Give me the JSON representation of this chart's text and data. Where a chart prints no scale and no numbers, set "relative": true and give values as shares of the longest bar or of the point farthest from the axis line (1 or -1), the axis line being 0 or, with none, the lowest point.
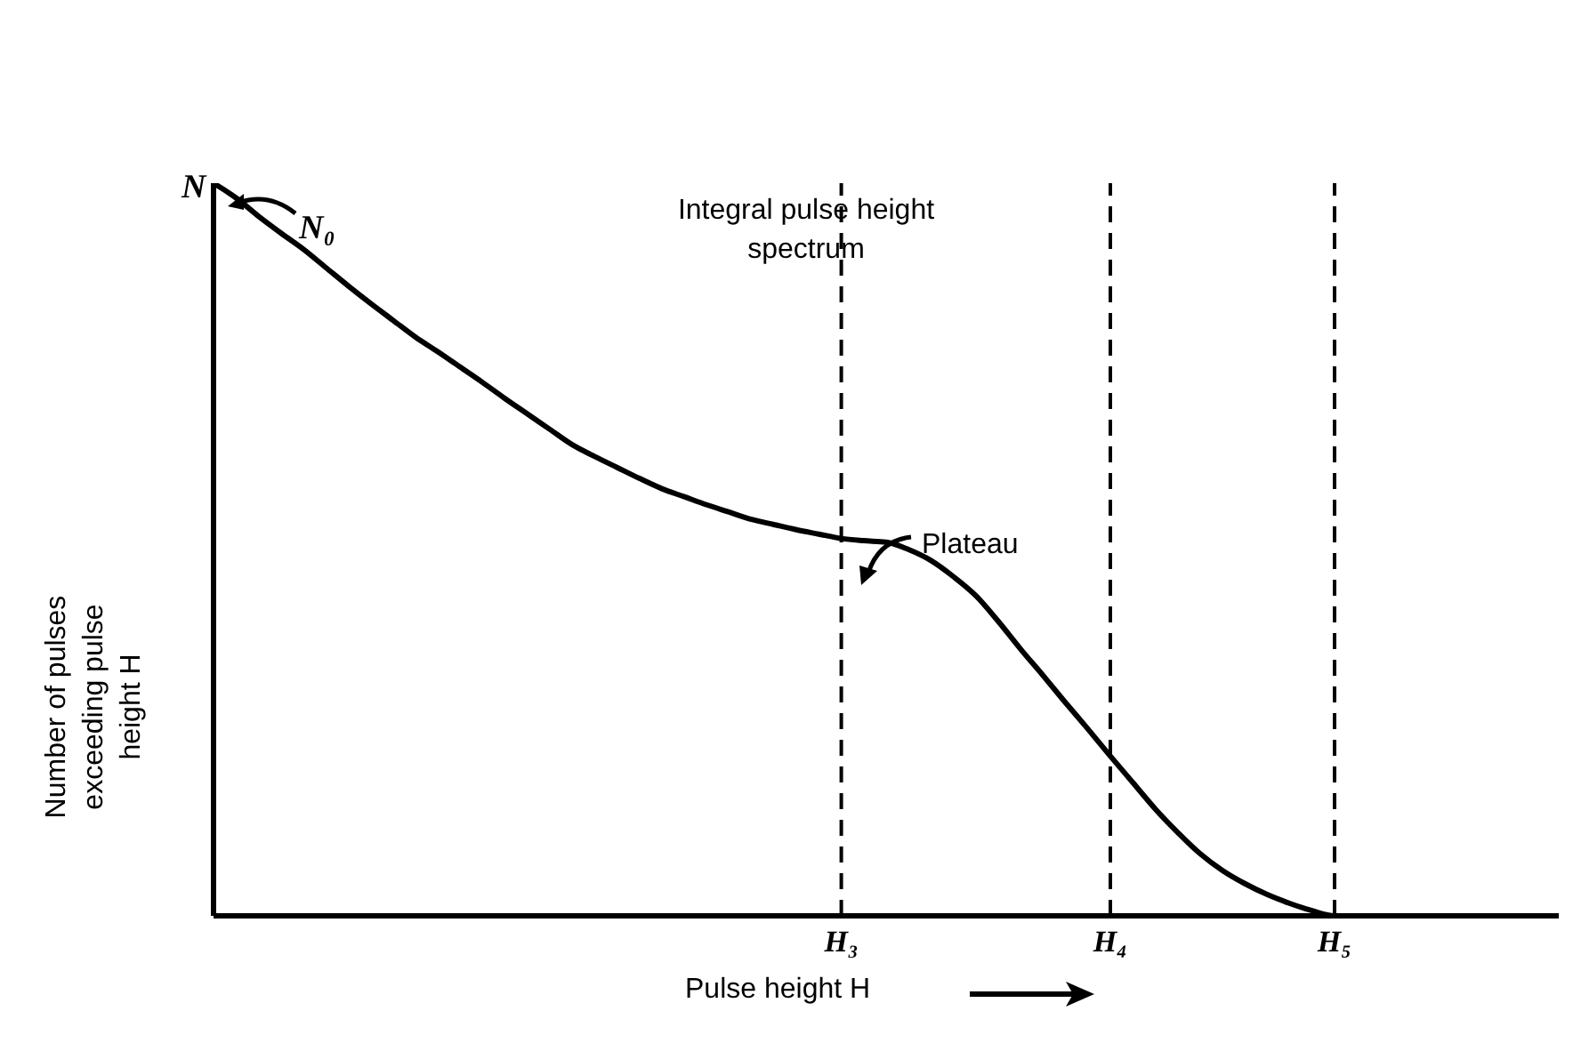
{
  "chart_data": {
    "type": "line",
    "relative": true,
    "xlabel": "Pulse height H",
    "ylabel": "Number of pulses exceeding pulse height H",
    "categories": [
      null,
      null,
      null,
      null,
      null,
      null,
      null,
      null,
      null,
      null,
      null,
      null,
      null,
      null,
      null,
      null,
      null,
      null,
      null,
      null,
      null,
      null,
      null,
      null,
      null,
      null,
      null,
      null,
      "H₃",
      null,
      null,
      null,
      null,
      null,
      null,
      null,
      null,
      null,
      null,
      null,
      "H₄",
      null,
      null,
      null,
      null,
      null,
      null,
      null,
      null,
      null,
      "H₅",
      null,
      null,
      null,
      null,
      null,
      null,
      null,
      null,
      null,
      null
    ],
    "series": [
      {
        "color": "#000000",
        "values": [
          1.0,
          0.98,
          0.955,
          0.932,
          0.91,
          0.885,
          0.86,
          0.836,
          0.813,
          0.79,
          0.77,
          0.749,
          0.728,
          0.706,
          0.685,
          0.664,
          0.643,
          0.627,
          0.612,
          0.597,
          0.583,
          0.572,
          0.561,
          0.551,
          0.541,
          0.534,
          0.527,
          0.521,
          0.515,
          0.512,
          0.51,
          0.5,
          0.485,
          0.463,
          0.437,
          0.402,
          0.364,
          0.328,
          0.291,
          0.255,
          0.218,
          0.182,
          0.146,
          0.114,
          0.085,
          0.062,
          0.044,
          0.029,
          0.017,
          0.007,
          0,
          0,
          0,
          0,
          0,
          0,
          0,
          0,
          0,
          0,
          0
        ]
      }
    ],
    "ref_lines": [
      {
        "axis": "x",
        "value": "H₃",
        "line_style": "dashed",
        "color": "#000000"
      },
      {
        "axis": "x",
        "value": "H₄",
        "line_style": "dashed",
        "color": "#000000"
      },
      {
        "axis": "x",
        "value": "H₅",
        "line_style": "dashed",
        "color": "#000000"
      }
    ],
    "annotations": [
      "N",
      "N₀",
      "Plateau",
      "Integral pulse height spectrum"
    ],
    "marker": "none",
    "line_style": "solid",
    "grid": false,
    "legend": false
  }
}
